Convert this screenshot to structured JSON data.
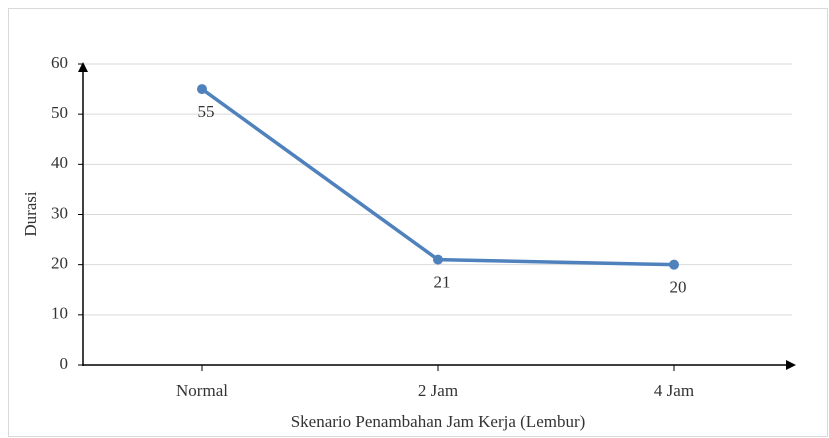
{
  "chart_data": {
    "type": "line",
    "categories": [
      "Normal",
      "2 Jam",
      "4 Jam"
    ],
    "values": [
      55,
      21,
      20
    ],
    "color": "#4f81bd",
    "xlabel": "Skenario Penambahan Jam Kerja (Lembur)",
    "ylabel": "Durasi",
    "ylim": [
      0,
      60
    ],
    "yticks": [
      0,
      10,
      20,
      30,
      40,
      50,
      60
    ],
    "grid": true
  }
}
